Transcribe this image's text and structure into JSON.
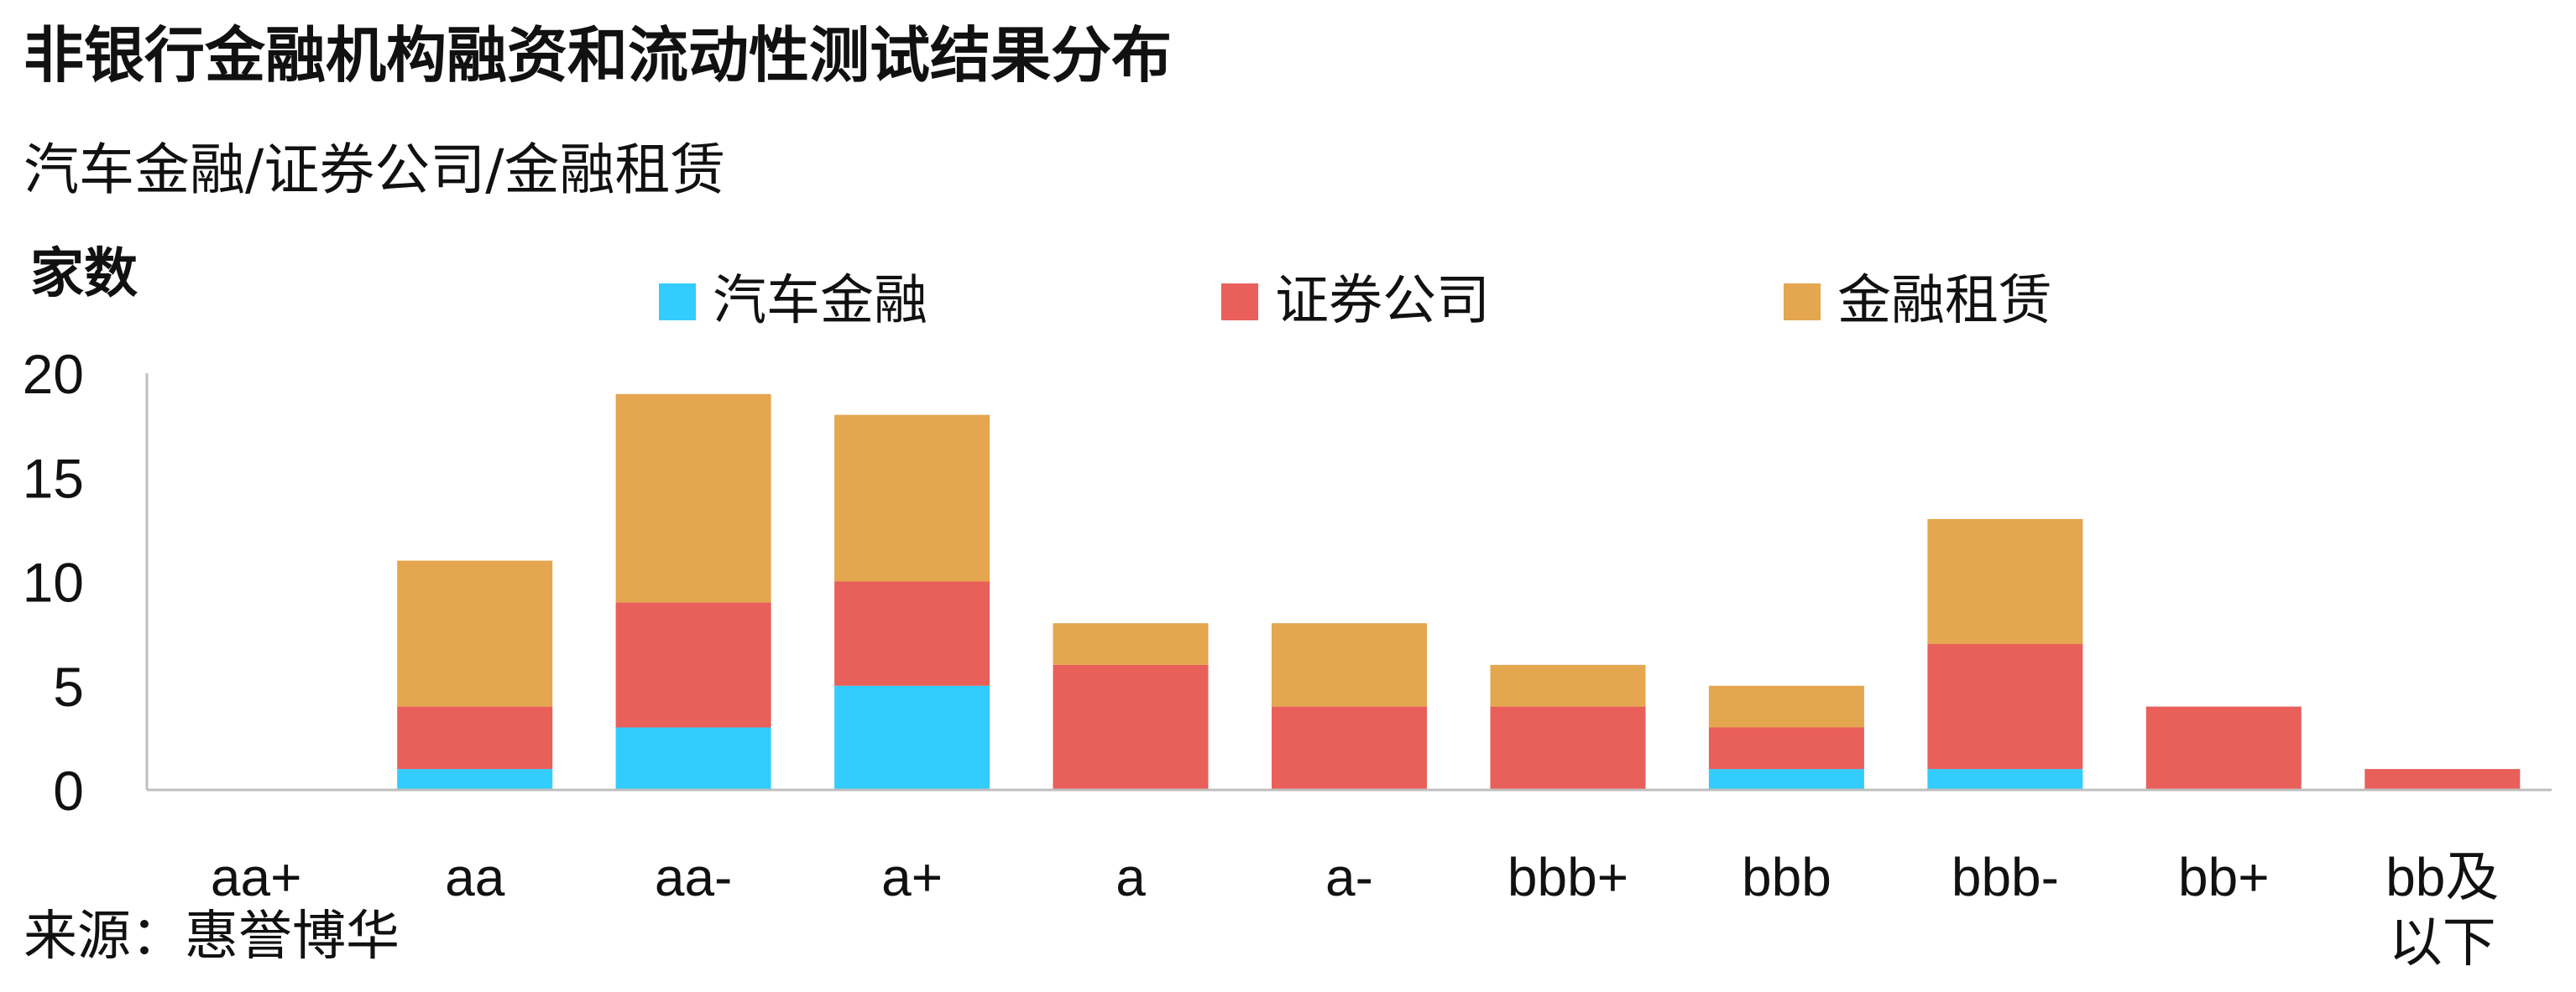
{
  "title": "非银行金融机构融资和流动性测试结果分布",
  "subtitle": "汽车金融/证券公司/金融租赁",
  "ylabel_text": "家数",
  "source": "来源：惠誉博华",
  "colors": {
    "auto_finance": "#33CCFF",
    "securities": "#E95F5A",
    "leasing": "#E4A64E",
    "axis": "#bfbfbf",
    "text": "#111111"
  },
  "chart_data": {
    "type": "bar",
    "stacked": true,
    "ylabel": "家数",
    "ylim": [
      0,
      20
    ],
    "yticks": [
      0,
      5,
      10,
      15,
      20
    ],
    "grid": false,
    "legend_position": "top",
    "categories": [
      "aa+",
      "aa",
      "aa-",
      "a+",
      "a",
      "a-",
      "bbb+",
      "bbb",
      "bbb-",
      "bb+",
      "bb及以下"
    ],
    "series": [
      {
        "name": "汽车金融",
        "color": "#33CCFF",
        "values": [
          0,
          1,
          3,
          5,
          0,
          0,
          0,
          1,
          1,
          0,
          0
        ]
      },
      {
        "name": "证券公司",
        "color": "#E95F5A",
        "values": [
          0,
          3,
          6,
          5,
          6,
          4,
          4,
          2,
          6,
          4,
          1
        ]
      },
      {
        "name": "金融租赁",
        "color": "#E4A64E",
        "values": [
          0,
          7,
          10,
          8,
          2,
          4,
          2,
          2,
          6,
          0,
          0
        ]
      }
    ]
  }
}
